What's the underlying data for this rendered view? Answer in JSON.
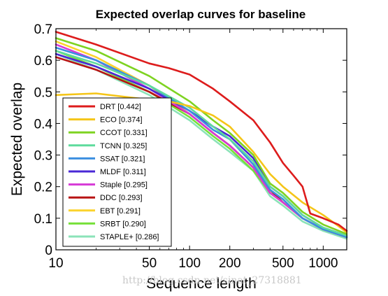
{
  "watermark": "http://blog.csdn.net/sinat_27318881",
  "chart_data": {
    "type": "line",
    "title": "Expected overlap curves for baseline",
    "xlabel": "Sequence length",
    "ylabel": "Expected overlap",
    "xscale": "log",
    "xlim": [
      10,
      1500
    ],
    "ylim": [
      0,
      0.7
    ],
    "xticks": [
      10,
      50,
      100,
      200,
      500,
      1000
    ],
    "xtick_labels": [
      "10",
      "50",
      "100",
      "200",
      "500",
      "1000"
    ],
    "yticks": [
      0,
      0.1,
      0.2,
      0.3,
      0.4,
      0.5,
      0.6,
      0.7
    ],
    "ytick_labels": [
      "0",
      "0.1",
      "0.2",
      "0.3",
      "0.4",
      "0.5",
      "0.6",
      "0.7"
    ],
    "grid": false,
    "legend_position": "bottom-left",
    "series": [
      {
        "name": "DRT [0.442]",
        "color": "#dd1c1c",
        "x": [
          10,
          20,
          50,
          70,
          100,
          150,
          200,
          300,
          400,
          500,
          600,
          700,
          800,
          1000,
          1300,
          1500
        ],
        "y": [
          0.69,
          0.65,
          0.59,
          0.575,
          0.555,
          0.51,
          0.47,
          0.41,
          0.34,
          0.275,
          0.235,
          0.2,
          0.115,
          0.1,
          0.08,
          0.06
        ]
      },
      {
        "name": "ECO [0.374]",
        "color": "#f5c518",
        "x": [
          10,
          20,
          40,
          70,
          100,
          150,
          200,
          300,
          400,
          500,
          700,
          1000,
          1300,
          1500
        ],
        "y": [
          0.49,
          0.495,
          0.48,
          0.47,
          0.455,
          0.425,
          0.39,
          0.31,
          0.24,
          0.2,
          0.15,
          0.11,
          0.075,
          0.055
        ]
      },
      {
        "name": "CCOT [0.331]",
        "color": "#7ed321",
        "x": [
          10,
          20,
          50,
          100,
          150,
          200,
          300,
          400,
          500,
          700,
          1000,
          1500
        ],
        "y": [
          0.67,
          0.63,
          0.55,
          0.47,
          0.41,
          0.37,
          0.3,
          0.21,
          0.18,
          0.12,
          0.08,
          0.05
        ]
      },
      {
        "name": "TCNN [0.325]",
        "color": "#5edb9c",
        "x": [
          10,
          20,
          50,
          100,
          150,
          200,
          300,
          400,
          500,
          700,
          1000,
          1500
        ],
        "y": [
          0.63,
          0.59,
          0.52,
          0.45,
          0.39,
          0.35,
          0.28,
          0.2,
          0.17,
          0.11,
          0.07,
          0.045
        ]
      },
      {
        "name": "SSAT [0.321]",
        "color": "#3b8fe0",
        "x": [
          10,
          20,
          50,
          100,
          150,
          200,
          300,
          400,
          500,
          700,
          1000,
          1500
        ],
        "y": [
          0.64,
          0.6,
          0.52,
          0.44,
          0.38,
          0.35,
          0.27,
          0.19,
          0.16,
          0.1,
          0.065,
          0.04
        ]
      },
      {
        "name": "MLDF [0.311]",
        "color": "#4a28d6",
        "x": [
          10,
          20,
          50,
          100,
          150,
          200,
          300,
          400,
          500,
          700,
          1000,
          1500
        ],
        "y": [
          0.62,
          0.58,
          0.51,
          0.44,
          0.39,
          0.36,
          0.29,
          0.2,
          0.17,
          0.11,
          0.07,
          0.045
        ]
      },
      {
        "name": "Staple [0.295]",
        "color": "#d63ad6",
        "x": [
          10,
          20,
          50,
          100,
          150,
          200,
          300,
          400,
          500,
          700,
          1000,
          1500
        ],
        "y": [
          0.65,
          0.6,
          0.51,
          0.43,
          0.37,
          0.33,
          0.26,
          0.18,
          0.15,
          0.1,
          0.065,
          0.04
        ]
      },
      {
        "name": "DDC [0.293]",
        "color": "#b81414",
        "x": [
          10,
          20,
          50,
          100,
          150,
          200,
          300,
          400,
          500,
          700,
          1000,
          1500
        ],
        "y": [
          0.61,
          0.57,
          0.5,
          0.43,
          0.37,
          0.33,
          0.26,
          0.19,
          0.15,
          0.1,
          0.065,
          0.04
        ]
      },
      {
        "name": "EBT [0.291]",
        "color": "#fbd32c",
        "x": [
          10,
          20,
          50,
          100,
          150,
          200,
          300,
          400,
          500,
          700,
          1000,
          1500
        ],
        "y": [
          0.66,
          0.61,
          0.52,
          0.43,
          0.37,
          0.33,
          0.26,
          0.18,
          0.15,
          0.1,
          0.065,
          0.04
        ]
      },
      {
        "name": "SRBT [0.290]",
        "color": "#76e03a",
        "x": [
          10,
          20,
          50,
          100,
          150,
          200,
          300,
          400,
          500,
          700,
          1000,
          1500
        ],
        "y": [
          0.63,
          0.58,
          0.5,
          0.42,
          0.36,
          0.32,
          0.25,
          0.18,
          0.15,
          0.1,
          0.065,
          0.04
        ]
      },
      {
        "name": "STAPLE+ [0.286]",
        "color": "#8be3b8",
        "x": [
          10,
          20,
          50,
          100,
          150,
          200,
          300,
          400,
          500,
          700,
          1000,
          1500
        ],
        "y": [
          0.62,
          0.57,
          0.49,
          0.41,
          0.35,
          0.31,
          0.25,
          0.17,
          0.14,
          0.09,
          0.06,
          0.035
        ]
      }
    ]
  }
}
